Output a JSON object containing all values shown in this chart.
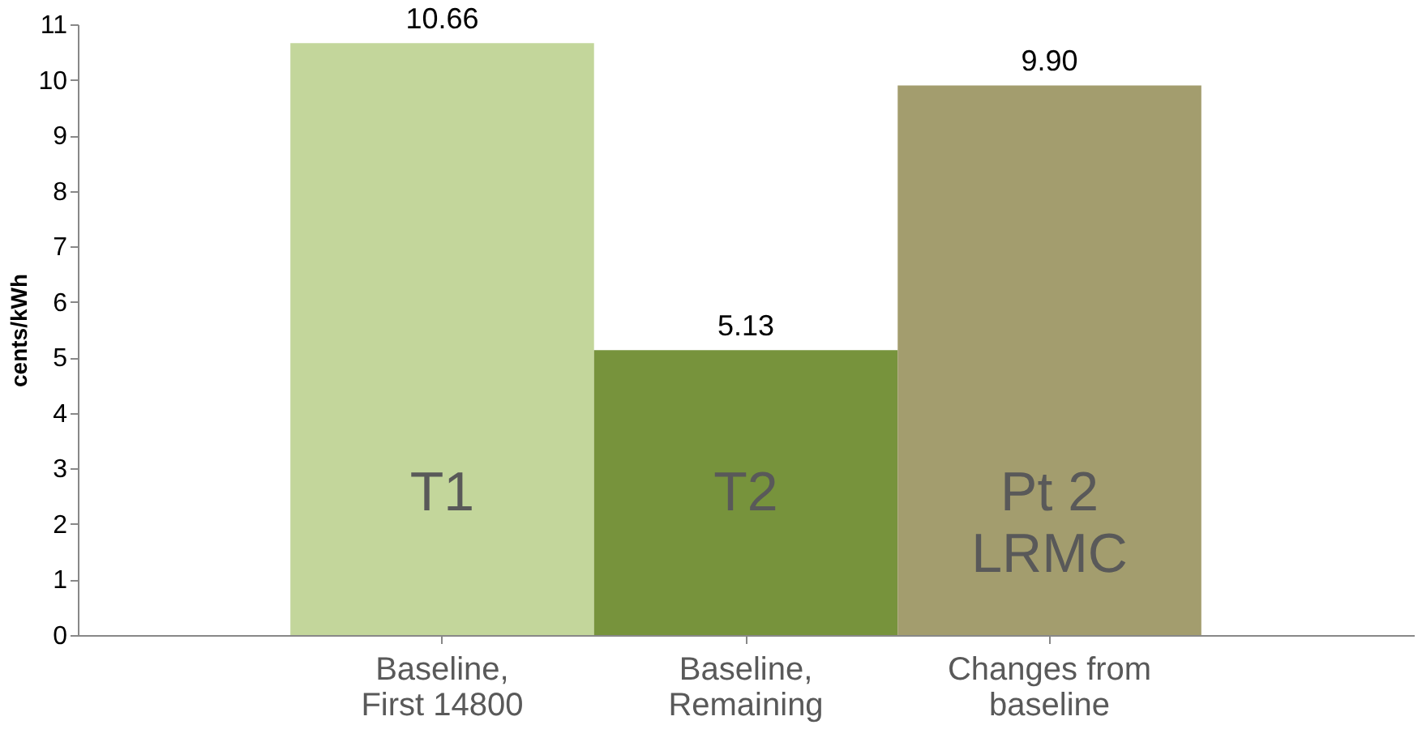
{
  "chart_data": {
    "type": "bar",
    "categories": [
      "Baseline, First 14800",
      "Baseline, Remaining",
      "Changes from baseline"
    ],
    "values": [
      10.66,
      5.13,
      9.9
    ],
    "colors": [
      "#c3d69b",
      "#77933c",
      "#a39d6e"
    ],
    "value_labels": [
      "10.66",
      "5.13",
      "9.90"
    ],
    "ylabel": "cents/kWh",
    "ylim": [
      0,
      11
    ],
    "yticks": [
      0,
      1,
      2,
      3,
      4,
      5,
      6,
      7,
      8,
      9,
      10,
      11
    ],
    "grid": false,
    "annotations": [
      "T1",
      "T2",
      "Pt 2 LRMC"
    ]
  }
}
